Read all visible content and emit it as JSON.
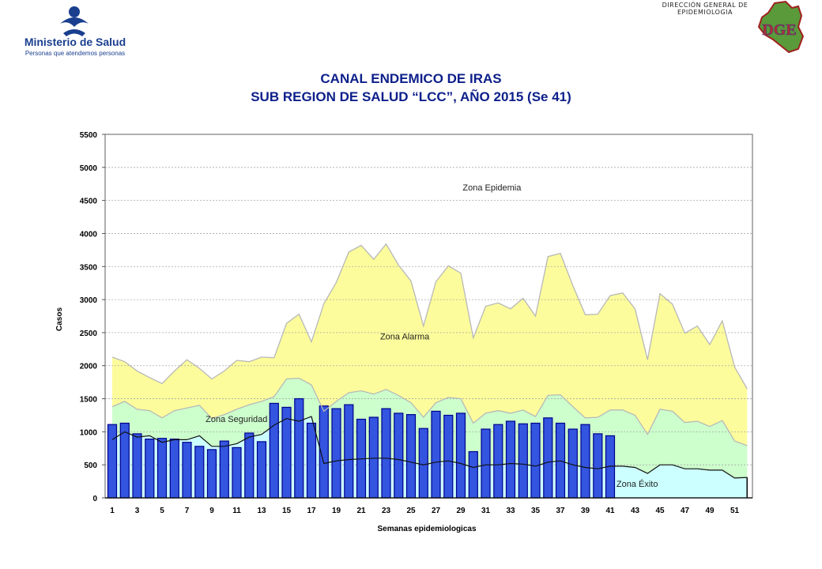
{
  "header": {
    "ministry_name": "Ministerio de Salud",
    "ministry_slogan": "Personas que atendemos personas",
    "dge_caption_line1": "DIRECCIÓN GENERAL DE",
    "dge_caption_line2": "EPIDEMIOLOGIA",
    "dge_logo_text": "DGE"
  },
  "chart_data": {
    "type": "area",
    "title": "CANAL ENDEMICO DE IRAS",
    "subtitle": "SUB REGION DE SALUD “LCC”, AÑO 2015 (Se 41)",
    "xlabel": "Semanas epidemiologicas",
    "ylabel": "Casos",
    "ylim": [
      0,
      5500
    ],
    "yticks": [
      0,
      500,
      1000,
      1500,
      2000,
      2500,
      3000,
      3500,
      4000,
      4500,
      5000,
      5500
    ],
    "xtick_labels": [
      "1",
      "3",
      "5",
      "7",
      "9",
      "11",
      "13",
      "15",
      "17",
      "19",
      "21",
      "23",
      "25",
      "27",
      "29",
      "31",
      "33",
      "35",
      "37",
      "39",
      "41",
      "43",
      "45",
      "47",
      "49",
      "51"
    ],
    "grid": true,
    "zone_labels": [
      "Zona Epidemia",
      "Zona Alarma",
      "Zona Seguridad",
      "Zona Éxito"
    ],
    "colors": {
      "epidemia": "#ffffff",
      "alarma": "#fcfc9c",
      "seguridad": "#ccffcc",
      "exito": "#ccffff",
      "bars": "#3355e0",
      "bar_edge": "#00008b",
      "title": "#0d1f8a"
    },
    "weeks": [
      1,
      2,
      3,
      4,
      5,
      6,
      7,
      8,
      9,
      10,
      11,
      12,
      13,
      14,
      15,
      16,
      17,
      18,
      19,
      20,
      21,
      22,
      23,
      24,
      25,
      26,
      27,
      28,
      29,
      30,
      31,
      32,
      33,
      34,
      35,
      36,
      37,
      38,
      39,
      40,
      41,
      42,
      43,
      44,
      45,
      46,
      47,
      48,
      49,
      50,
      51,
      52
    ],
    "exito_limit": [
      880,
      1000,
      920,
      940,
      840,
      880,
      880,
      940,
      780,
      780,
      820,
      920,
      960,
      1100,
      1200,
      1160,
      1230,
      520,
      560,
      580,
      590,
      600,
      600,
      580,
      540,
      500,
      540,
      560,
      520,
      460,
      500,
      500,
      520,
      510,
      480,
      540,
      560,
      500,
      460,
      440,
      480,
      480,
      460,
      370,
      500,
      500,
      440,
      440,
      420,
      420,
      300,
      310
    ],
    "seguridad_limit": [
      1380,
      1460,
      1340,
      1320,
      1210,
      1320,
      1360,
      1400,
      1200,
      1260,
      1340,
      1410,
      1460,
      1530,
      1800,
      1810,
      1710,
      1310,
      1460,
      1590,
      1620,
      1570,
      1640,
      1550,
      1440,
      1220,
      1440,
      1520,
      1500,
      1130,
      1280,
      1320,
      1280,
      1330,
      1230,
      1550,
      1560,
      1380,
      1210,
      1220,
      1330,
      1330,
      1250,
      960,
      1340,
      1310,
      1140,
      1160,
      1080,
      1170,
      860,
      790
    ],
    "alarma_limit": [
      2130,
      2060,
      1920,
      1820,
      1730,
      1920,
      2090,
      1960,
      1800,
      1920,
      2080,
      2060,
      2130,
      2120,
      2640,
      2780,
      2360,
      2940,
      3260,
      3720,
      3820,
      3610,
      3840,
      3520,
      3280,
      2600,
      3270,
      3510,
      3400,
      2420,
      2900,
      2950,
      2860,
      3020,
      2750,
      3650,
      3700,
      3210,
      2770,
      2780,
      3060,
      3100,
      2860,
      2090,
      3090,
      2930,
      2490,
      2600,
      2320,
      2680,
      1980,
      1650
    ],
    "bar_weeks": [
      1,
      2,
      3,
      4,
      5,
      6,
      7,
      8,
      9,
      10,
      11,
      12,
      13,
      14,
      15,
      16,
      17,
      18,
      19,
      20,
      21,
      22,
      23,
      24,
      25,
      26,
      27,
      28,
      29,
      30,
      31,
      32,
      33,
      34,
      35,
      36,
      37,
      38,
      39,
      40,
      41
    ],
    "cases_2015": [
      1110,
      1130,
      970,
      890,
      900,
      890,
      840,
      780,
      730,
      860,
      760,
      980,
      850,
      1430,
      1370,
      1500,
      1130,
      1390,
      1350,
      1410,
      1190,
      1220,
      1350,
      1280,
      1260,
      1050,
      1310,
      1250,
      1280,
      700,
      1040,
      1110,
      1160,
      1120,
      1130,
      1210,
      1130,
      1040,
      1110,
      970,
      940
    ]
  }
}
